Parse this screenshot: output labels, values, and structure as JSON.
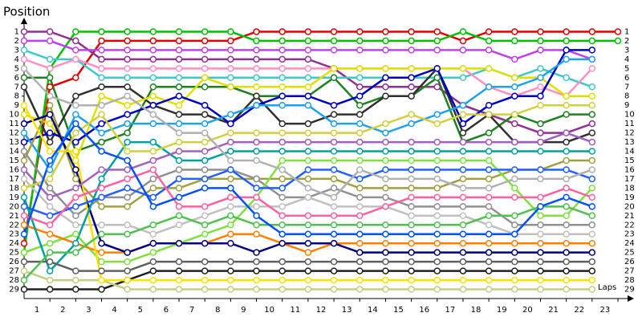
{
  "chart_data": {
    "type": "line",
    "y_axis_label": "Position",
    "x_axis_label": "Laps",
    "x": [
      0,
      1,
      2,
      3,
      4,
      5,
      6,
      7,
      8,
      9,
      10,
      11,
      12,
      13,
      14,
      15,
      16,
      17,
      18,
      19,
      20,
      21,
      22,
      23
    ],
    "xlim": [
      0,
      23
    ],
    "xticks": [
      1,
      2,
      3,
      4,
      5,
      6,
      7,
      8,
      9,
      10,
      11,
      12,
      13,
      14,
      15,
      16,
      17,
      18,
      19,
      20,
      21,
      22,
      23
    ],
    "ylim": [
      30,
      0
    ],
    "yticks": [
      1,
      2,
      3,
      4,
      5,
      6,
      7,
      8,
      9,
      10,
      11,
      12,
      13,
      14,
      15,
      16,
      17,
      18,
      19,
      20,
      21,
      22,
      23,
      24,
      25,
      26,
      27,
      28,
      29
    ],
    "series": [
      {
        "color": "#e00000",
        "values": [
          24,
          7,
          6,
          2,
          2,
          2,
          2,
          2,
          2,
          1,
          1,
          1,
          1,
          1,
          1,
          1,
          1,
          2,
          1,
          1,
          1,
          1,
          1,
          1
        ]
      },
      {
        "color": "#00c000",
        "values": [
          25,
          5,
          1,
          1,
          1,
          1,
          1,
          1,
          1,
          2,
          2,
          2,
          2,
          2,
          2,
          2,
          2,
          1,
          2,
          2,
          2,
          2,
          2,
          2
        ]
      },
      {
        "color": "#903090",
        "values": [
          1,
          1,
          2,
          4,
          4,
          4,
          4,
          4,
          4,
          4,
          4,
          4,
          5,
          7,
          7,
          7,
          7,
          9,
          10,
          11,
          12,
          12,
          11,
          null
        ]
      },
      {
        "color": "#c040f0",
        "values": [
          2,
          2,
          3,
          3,
          3,
          3,
          3,
          3,
          3,
          3,
          3,
          3,
          3,
          3,
          3,
          3,
          3,
          3,
          3,
          4,
          3,
          3,
          4,
          null
        ]
      },
      {
        "color": "#40c8c8",
        "values": [
          3,
          4,
          4,
          6,
          6,
          6,
          6,
          6,
          6,
          6,
          6,
          6,
          6,
          6,
          6,
          6,
          6,
          6,
          5,
          6,
          5,
          6,
          7,
          null
        ]
      },
      {
        "color": "#ff90c0",
        "values": [
          4,
          5,
          4,
          5,
          5,
          5,
          5,
          5,
          5,
          5,
          5,
          5,
          5,
          5,
          5,
          5,
          5,
          5,
          7,
          8,
          7,
          8,
          5,
          null
        ]
      },
      {
        "color": "#208020",
        "values": [
          6,
          6,
          14,
          13,
          12,
          7,
          7,
          7,
          7,
          8,
          8,
          8,
          6,
          9,
          8,
          8,
          6,
          13,
          12,
          10,
          11,
          10,
          10,
          null
        ]
      },
      {
        "color": "#303030",
        "values": [
          7,
          13,
          8,
          7,
          7,
          9,
          10,
          10,
          11,
          8,
          11,
          11,
          10,
          10,
          8,
          8,
          5,
          12,
          10,
          13,
          13,
          13,
          12,
          null
        ]
      },
      {
        "color": "#e0e000",
        "values": [
          10,
          11,
          15,
          8,
          9,
          8,
          9,
          6,
          7,
          7,
          7,
          7,
          5,
          5,
          5,
          5,
          5,
          5,
          5,
          6,
          6,
          8,
          8,
          null
        ]
      },
      {
        "color": "#0000c0",
        "values": [
          13,
          12,
          13,
          11,
          10,
          9,
          8,
          9,
          11,
          9,
          8,
          8,
          9,
          8,
          6,
          6,
          5,
          11,
          9,
          8,
          8,
          3,
          3,
          null
        ]
      },
      {
        "color": "#20a0f0",
        "values": [
          12,
          16,
          10,
          12,
          11,
          11,
          11,
          11,
          10,
          9,
          9,
          9,
          11,
          11,
          12,
          11,
          10,
          9,
          7,
          7,
          6,
          4,
          4,
          null
        ]
      },
      {
        "color": "#a0a040",
        "values": [
          15,
          9,
          17,
          20,
          20,
          18,
          18,
          17,
          17,
          17,
          17,
          17,
          17,
          18,
          18,
          18,
          18,
          17,
          17,
          16,
          16,
          15,
          15,
          null
        ]
      },
      {
        "color": "#909090",
        "values": [
          14,
          18,
          21,
          19,
          19,
          17,
          16,
          16,
          16,
          17,
          19,
          19,
          18,
          19,
          19,
          20,
          20,
          20,
          20,
          22,
          22,
          22,
          22,
          null
        ]
      },
      {
        "color": "#c0c0c0",
        "values": [
          17,
          20,
          22,
          22,
          22,
          23,
          22,
          21,
          20,
          20,
          20,
          19,
          20,
          20,
          20,
          21,
          21,
          21,
          22,
          23,
          23,
          23,
          23,
          null
        ]
      },
      {
        "color": "#80e040",
        "values": [
          25,
          24,
          23,
          26,
          26,
          25,
          24,
          23,
          22,
          19,
          15,
          15,
          15,
          15,
          15,
          15,
          15,
          15,
          15,
          18,
          21,
          21,
          18,
          null
        ]
      },
      {
        "color": "#ff8000",
        "values": [
          22,
          23,
          24,
          25,
          25,
          24,
          24,
          24,
          23,
          23,
          24,
          25,
          24,
          24,
          24,
          24,
          24,
          24,
          24,
          24,
          24,
          24,
          24,
          null
        ]
      },
      {
        "color": "#000080",
        "values": [
          11,
          10,
          16,
          24,
          25,
          24,
          24,
          24,
          24,
          25,
          24,
          24,
          24,
          25,
          25,
          25,
          25,
          25,
          25,
          25,
          25,
          25,
          25,
          null
        ]
      },
      {
        "color": "#202020",
        "values": [
          29,
          29,
          29,
          29,
          28,
          27,
          27,
          27,
          27,
          27,
          27,
          27,
          27,
          27,
          27,
          27,
          27,
          27,
          27,
          27,
          27,
          27,
          27,
          null
        ]
      },
      {
        "color": "#c0d080",
        "values": [
          27,
          28,
          28,
          28,
          29,
          29,
          29,
          29,
          29,
          29,
          29,
          29,
          29,
          29,
          29,
          29,
          29,
          29,
          29,
          29,
          29,
          29,
          29,
          null
        ]
      },
      {
        "color": "#ffe000",
        "values": [
          9,
          14,
          14,
          28,
          28,
          28,
          28,
          28,
          28,
          28,
          28,
          28,
          28,
          28,
          28,
          28,
          28,
          28,
          28,
          28,
          28,
          28,
          28,
          null
        ]
      },
      {
        "color": "#00a0a0",
        "values": [
          19,
          27,
          24,
          17,
          13,
          13,
          15,
          15,
          14,
          14,
          14,
          14,
          14,
          14,
          14,
          14,
          14,
          14,
          14,
          14,
          14,
          14,
          14,
          null
        ]
      },
      {
        "color": "#2060ff",
        "values": [
          20,
          21,
          20,
          19,
          18,
          19,
          17,
          17,
          16,
          18,
          18,
          16,
          16,
          17,
          16,
          16,
          16,
          16,
          16,
          16,
          16,
          16,
          17,
          null
        ]
      },
      {
        "color": "#ff60a0",
        "values": [
          21,
          22,
          19,
          18,
          17,
          16,
          20,
          20,
          19,
          19,
          21,
          21,
          21,
          21,
          20,
          19,
          19,
          19,
          19,
          19,
          19,
          18,
          19,
          null
        ]
      },
      {
        "color": "#606060",
        "values": [
          26,
          26,
          27,
          27,
          27,
          26,
          26,
          26,
          26,
          26,
          26,
          26,
          26,
          26,
          26,
          26,
          26,
          26,
          26,
          26,
          26,
          26,
          26,
          null
        ]
      },
      {
        "color": "#50c050",
        "values": [
          28,
          25,
          25,
          23,
          23,
          22,
          21,
          22,
          21,
          22,
          22,
          22,
          22,
          22,
          22,
          22,
          22,
          22,
          21,
          21,
          20,
          20,
          21,
          null
        ]
      },
      {
        "color": "#a060c0",
        "values": [
          16,
          19,
          18,
          16,
          16,
          15,
          14,
          14,
          13,
          13,
          13,
          13,
          13,
          13,
          13,
          13,
          13,
          13,
          13,
          13,
          13,
          12,
          13,
          null
        ]
      },
      {
        "color": "#d0d040",
        "values": [
          18,
          17,
          12,
          10,
          14,
          14,
          13,
          13,
          12,
          12,
          12,
          12,
          12,
          12,
          11,
          10,
          11,
          10,
          10,
          10,
          9,
          9,
          9,
          null
        ]
      },
      {
        "color": "#0050ff",
        "values": [
          23,
          15,
          11,
          14,
          15,
          20,
          19,
          18,
          18,
          21,
          23,
          23,
          23,
          23,
          23,
          23,
          23,
          23,
          23,
          23,
          20,
          19,
          20,
          null
        ]
      },
      {
        "color": "#b0b0b0",
        "values": [
          5,
          8,
          9,
          9,
          8,
          10,
          12,
          12,
          15,
          15,
          16,
          18,
          19,
          16,
          17,
          17,
          17,
          18,
          18,
          17,
          17,
          17,
          16,
          null
        ]
      }
    ]
  }
}
